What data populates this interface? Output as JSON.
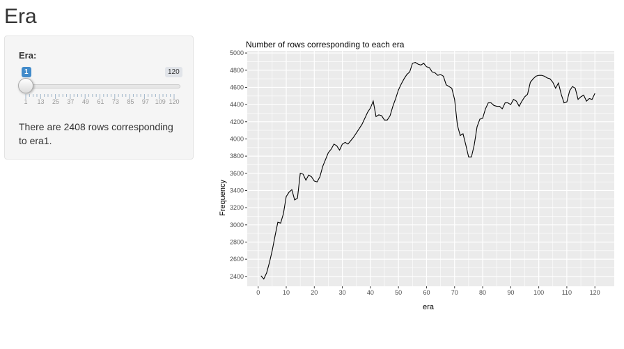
{
  "page": {
    "title": "Era"
  },
  "sidebar": {
    "slider": {
      "label": "Era:",
      "min": 1,
      "max": 120,
      "value": 1,
      "value_label": "1",
      "max_label": "120",
      "grid_labels": [
        "1",
        "13",
        "25",
        "37",
        "49",
        "61",
        "73",
        "85",
        "97",
        "109",
        "120"
      ]
    },
    "info_line1": "There are 2408 rows corresponding",
    "info_line2": "to era1."
  },
  "chart_data": {
    "type": "line",
    "title": "Number of rows corresponding to each era",
    "xlabel": "era",
    "ylabel": "Frequency",
    "xlim": [
      -3.9,
      126.9
    ],
    "ylim": [
      2285,
      5025
    ],
    "xticks": [
      0,
      10,
      20,
      30,
      40,
      50,
      60,
      70,
      80,
      90,
      100,
      110,
      120
    ],
    "yticks": [
      2400,
      2600,
      2800,
      3000,
      3200,
      3400,
      3600,
      3800,
      4000,
      4200,
      4400,
      4600,
      4800,
      5000
    ],
    "grid": true,
    "colors": {
      "panel": "#ebebeb",
      "grid_major": "#ffffff",
      "line": "#000000"
    },
    "x": [
      1,
      2,
      3,
      4,
      5,
      6,
      7,
      8,
      9,
      10,
      11,
      12,
      13,
      14,
      15,
      16,
      17,
      18,
      19,
      20,
      21,
      22,
      23,
      24,
      25,
      26,
      27,
      28,
      29,
      30,
      31,
      32,
      33,
      34,
      35,
      36,
      37,
      38,
      39,
      40,
      41,
      42,
      43,
      44,
      45,
      46,
      47,
      48,
      49,
      50,
      51,
      52,
      53,
      54,
      55,
      56,
      57,
      58,
      59,
      60,
      61,
      62,
      63,
      64,
      65,
      66,
      67,
      68,
      69,
      70,
      71,
      72,
      73,
      74,
      75,
      76,
      77,
      78,
      79,
      80,
      81,
      82,
      83,
      84,
      85,
      86,
      87,
      88,
      89,
      90,
      91,
      92,
      93,
      94,
      95,
      96,
      97,
      98,
      99,
      100,
      101,
      102,
      103,
      104,
      105,
      106,
      107,
      108,
      109,
      110,
      111,
      112,
      113,
      114,
      115,
      116,
      117,
      118,
      119,
      120
    ],
    "y": [
      2408,
      2370,
      2440,
      2560,
      2700,
      2870,
      3030,
      3020,
      3130,
      3330,
      3380,
      3410,
      3290,
      3310,
      3600,
      3590,
      3520,
      3580,
      3560,
      3510,
      3500,
      3560,
      3680,
      3760,
      3840,
      3880,
      3940,
      3920,
      3870,
      3940,
      3960,
      3940,
      3980,
      4020,
      4070,
      4120,
      4170,
      4240,
      4310,
      4360,
      4440,
      4260,
      4280,
      4270,
      4220,
      4220,
      4270,
      4380,
      4470,
      4570,
      4640,
      4700,
      4750,
      4780,
      4880,
      4890,
      4870,
      4860,
      4880,
      4840,
      4830,
      4780,
      4770,
      4740,
      4750,
      4730,
      4630,
      4610,
      4590,
      4460,
      4160,
      4040,
      4060,
      3930,
      3790,
      3790,
      3930,
      4140,
      4230,
      4240,
      4350,
      4420,
      4420,
      4390,
      4380,
      4380,
      4350,
      4420,
      4420,
      4400,
      4460,
      4440,
      4380,
      4440,
      4490,
      4520,
      4660,
      4700,
      4730,
      4740,
      4740,
      4730,
      4710,
      4700,
      4660,
      4590,
      4650,
      4520,
      4420,
      4430,
      4560,
      4610,
      4590,
      4460,
      4490,
      4510,
      4440,
      4470,
      4460,
      4530
    ]
  }
}
